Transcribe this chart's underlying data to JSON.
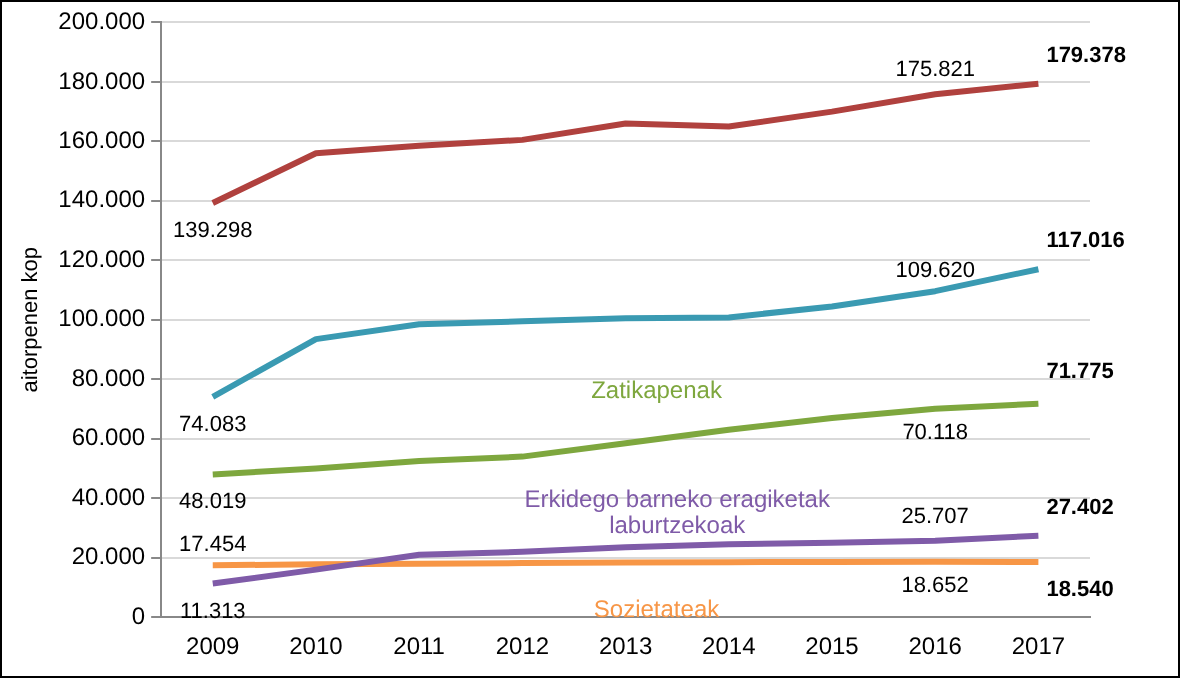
{
  "chart_data": {
    "type": "line",
    "ylabel": "aitorpenen kop",
    "categories": [
      "2009",
      "2010",
      "2011",
      "2012",
      "2013",
      "2014",
      "2015",
      "2016",
      "2017"
    ],
    "ylim": [
      0,
      200000
    ],
    "yticks": [
      0,
      {
        "value": 20000,
        "label": "20.000"
      },
      {
        "value": 40000,
        "label": "40.000"
      },
      {
        "value": 60000,
        "label": "60.000"
      },
      {
        "value": 80000,
        "label": "80.000"
      },
      {
        "value": 100000,
        "label": "100.000"
      },
      {
        "value": 120000,
        "label": "120.000"
      },
      {
        "value": 140000,
        "label": "140.000"
      },
      {
        "value": 160000,
        "label": "160.000"
      },
      {
        "value": 180000,
        "label": "180.000"
      },
      {
        "value": 200000,
        "label": "200.000"
      }
    ],
    "grid": "y",
    "legend": false,
    "marker": "none",
    "series": [
      {
        "color": "#b0413e",
        "values": [
          139298,
          156000,
          158500,
          160500,
          166000,
          165000,
          170000,
          175821,
          179378
        ],
        "value_labels": [
          "139.298",
          null,
          null,
          null,
          null,
          null,
          null,
          "175.821",
          "179.378"
        ]
      },
      {
        "color": "#3a9ab2",
        "values": [
          74083,
          93500,
          98500,
          99500,
          100500,
          100800,
          104500,
          109620,
          117016
        ],
        "value_labels": [
          "74.083",
          null,
          null,
          null,
          null,
          null,
          null,
          "109.620",
          "117.016"
        ]
      },
      {
        "name": "Zatikapenak",
        "color": "#7ea73e",
        "values": [
          48019,
          50000,
          52500,
          54000,
          58500,
          63000,
          67000,
          70118,
          71775
        ],
        "value_labels": [
          "48.019",
          null,
          null,
          null,
          null,
          null,
          null,
          "70.118",
          "71.775"
        ]
      },
      {
        "name": "Erkidego barneko eragiketak laburtzekoak",
        "color": "#7f5ba8",
        "values": [
          11313,
          16000,
          21000,
          22000,
          23500,
          24500,
          25000,
          25707,
          27402
        ],
        "value_labels": [
          "11.313",
          null,
          null,
          null,
          null,
          null,
          null,
          "25.707",
          "27.402"
        ]
      },
      {
        "name": "Sozietateak",
        "color": "#f79646",
        "values": [
          17454,
          17800,
          18000,
          18200,
          18400,
          18500,
          18600,
          18652,
          18540
        ],
        "value_labels": [
          "17.454",
          null,
          null,
          null,
          null,
          null,
          null,
          "18.652",
          "18.540"
        ]
      }
    ]
  }
}
